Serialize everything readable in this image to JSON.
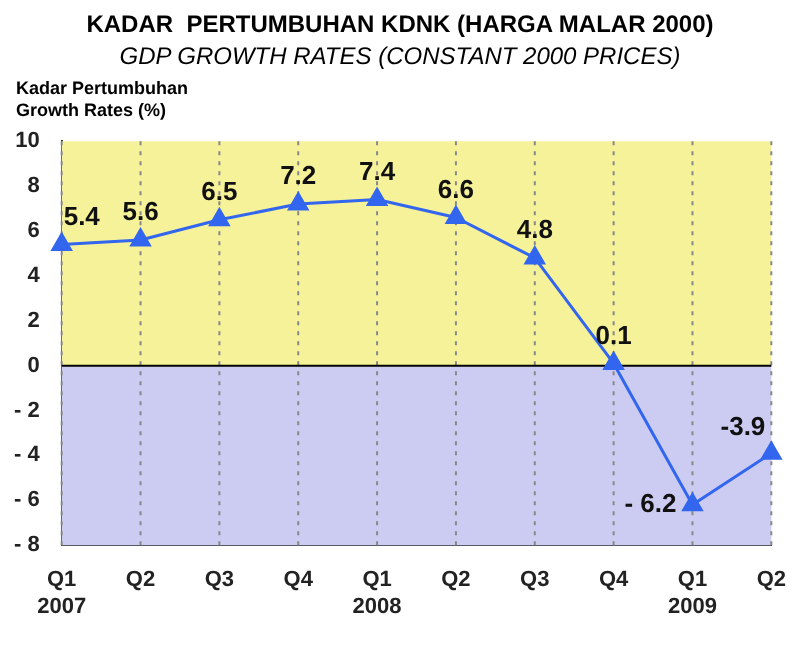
{
  "chart_data": {
    "type": "line",
    "title": "KADAR  PERTUMBUHAN KDNK (HARGA MALAR 2000)",
    "subtitle": "GDP GROWTH RATES (CONSTANT 2000 PRICES)",
    "ylabel": "Kadar Pertumbuhan Growth Rates (%)",
    "categories": [
      "Q1 2007",
      "Q2",
      "Q3",
      "Q4",
      "Q1 2008",
      "Q2",
      "Q3",
      "Q4",
      "Q1 2009",
      "Q2"
    ],
    "series": [
      {
        "color": "#3366ee",
        "values": [
          5.4,
          5.6,
          6.5,
          7.2,
          7.4,
          6.6,
          4.8,
          0.1,
          -6.2,
          -3.9
        ],
        "value_labels": [
          "5.4",
          "5.6",
          "6.5",
          "7.2",
          "7.4",
          "6.6",
          "4.8",
          "0.1",
          "- 6.2",
          "-3.9"
        ]
      }
    ],
    "ylim": [
      -8,
      10
    ],
    "yticks": [
      {
        "value": -8,
        "label": "- 8"
      },
      {
        "value": -6,
        "label": "- 6"
      },
      {
        "value": -4,
        "label": "- 4"
      },
      {
        "value": -2,
        "label": "- 2"
      },
      0,
      2,
      4,
      6,
      8,
      10
    ],
    "bands": [
      {
        "axis": "y",
        "from": 0,
        "to": 10,
        "color": "#f6f29a"
      },
      {
        "axis": "y",
        "from": -8,
        "to": 0,
        "color": "#ccccf2"
      }
    ],
    "ref_lines": [
      {
        "axis": "y",
        "value": 0,
        "color": "#000000"
      }
    ],
    "grid": "x",
    "marker": "triangle",
    "line_style": "solid",
    "legend": false
  }
}
